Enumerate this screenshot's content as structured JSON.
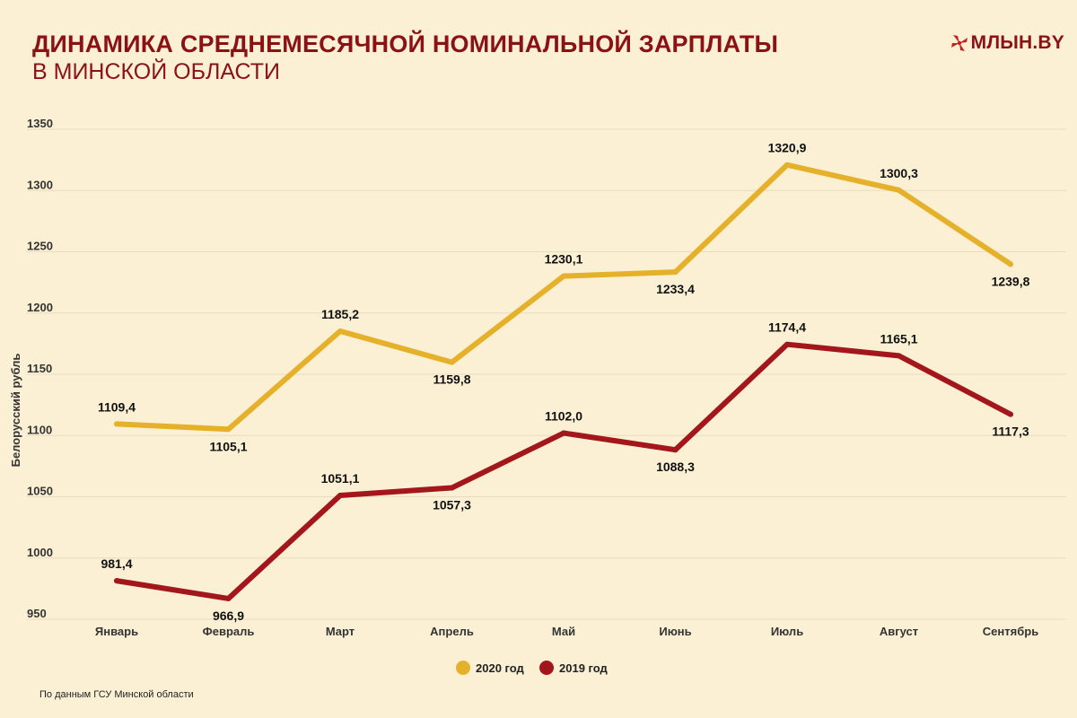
{
  "header": {
    "title": "ДИНАМИКА СРЕДНЕМЕСЯЧНОЙ НОМИНАЛЬНОЙ ЗАРПЛАТЫ",
    "subtitle": "В МИНСКОЙ ОБЛАСТИ",
    "logo_text": "МЛЫН.BY",
    "logo_icon": "windmill-icon"
  },
  "footer": {
    "source": "По данным ГСУ Минской области"
  },
  "colors": {
    "background": "#fbf0d4",
    "title": "#8b1214",
    "series2020": "#e6b12a",
    "series2019": "#a3161b",
    "grid": "#e8dcc0"
  },
  "chart_data": {
    "type": "line",
    "title": "ДИНАМИКА СРЕДНЕМЕСЯЧНОЙ НОМИНАЛЬНОЙ ЗАРПЛАТЫ В МИНСКОЙ ОБЛАСТИ",
    "xlabel": "",
    "ylabel": "Белорусский рубль",
    "ylim": [
      950,
      1350
    ],
    "yticks": [
      950,
      1000,
      1050,
      1100,
      1150,
      1200,
      1250,
      1300,
      1350
    ],
    "ytick_labels": [
      "950",
      "1000",
      "1050",
      "1100",
      "1150",
      "1200",
      "1250",
      "1300",
      "1350"
    ],
    "grid": true,
    "legend_position": "bottom-center",
    "categories": [
      "Январь",
      "Февраль",
      "Март",
      "Апрель",
      "Май",
      "Июнь",
      "Июль",
      "Август",
      "Сентябрь"
    ],
    "series": [
      {
        "name": "2020 год",
        "color": "#e6b12a",
        "values": [
          1109.4,
          1105.1,
          1185.2,
          1159.8,
          1230.1,
          1233.4,
          1320.9,
          1300.3,
          1239.8
        ],
        "labels": [
          "1109,4",
          "1105,1",
          "1185,2",
          "1159,8",
          "1230,1",
          "1233,4",
          "1320,9",
          "1300,3",
          "1239,8"
        ],
        "label_positions": [
          "above",
          "below",
          "above",
          "below",
          "above",
          "below",
          "above",
          "above",
          "below"
        ]
      },
      {
        "name": "2019 год",
        "color": "#a3161b",
        "values": [
          981.4,
          966.9,
          1051.1,
          1057.3,
          1102.0,
          1088.3,
          1174.4,
          1165.1,
          1117.3
        ],
        "labels": [
          "981,4",
          "966,9",
          "1051,1",
          "1057,3",
          "1102,0",
          "1088,3",
          "1174,4",
          "1165,1",
          "1117,3"
        ],
        "label_positions": [
          "above",
          "below",
          "above",
          "below",
          "above",
          "below",
          "above",
          "above",
          "below"
        ]
      }
    ]
  }
}
